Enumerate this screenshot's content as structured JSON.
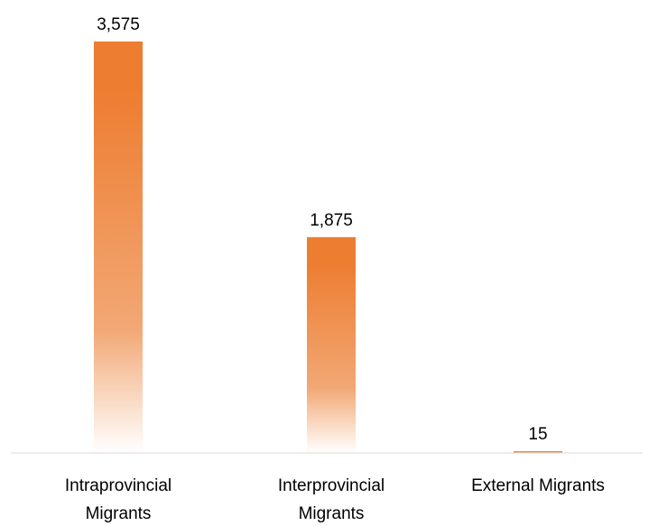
{
  "chart_data": {
    "type": "bar",
    "categories": [
      [
        "Intraprovincial",
        "Migrants"
      ],
      [
        "Interprovincial",
        "Migrants"
      ],
      [
        "External Migrants"
      ]
    ],
    "values": [
      3575,
      1875,
      15
    ],
    "data_labels": [
      "3,575",
      "1,875",
      "15"
    ],
    "ylim": [
      0,
      3575
    ],
    "grid": false,
    "legend": "none",
    "bar_color_top": "#ED7D31",
    "bar_color_fade": "#FFFFFF",
    "axis_color": "#D9D9D9"
  }
}
